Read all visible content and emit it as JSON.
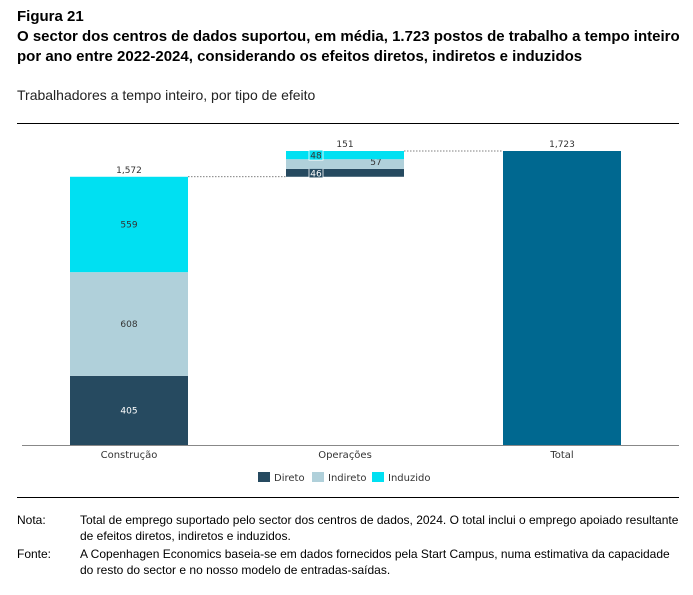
{
  "figure_label": "Figura 21",
  "title": "O sector dos centros de dados suportou, em média, 1.723 postos de trabalho a tempo inteiro por ano entre 2022-2024, considerando os efeitos diretos, indiretos e induzidos",
  "subtitle": "Trabalhadores a tempo inteiro, por tipo de efeito",
  "chart_data": {
    "type": "bar",
    "stacked": true,
    "waterfall": true,
    "categories": [
      "Construção",
      "Operações",
      "Total"
    ],
    "series": [
      {
        "name": "Direto",
        "color": "#264a60",
        "values": [
          405,
          46,
          null
        ]
      },
      {
        "name": "Indireto",
        "color": "#b0d0da",
        "values": [
          608,
          57,
          null
        ]
      },
      {
        "name": "Induzido",
        "color": "#00e0f2",
        "values": [
          559,
          48,
          null
        ]
      }
    ],
    "total": {
      "value": 1723,
      "color": "#006890"
    },
    "bar_totals": [
      "1,572",
      "151",
      "1,723"
    ],
    "segment_labels": [
      [
        "405",
        "608",
        "559"
      ],
      [
        "46",
        "57",
        "48"
      ]
    ],
    "ylim": [
      0,
      1723
    ],
    "legend_position": "bottom",
    "grid": false,
    "xlabel": "",
    "ylabel": ""
  },
  "notes": {
    "nota_key": "Nota:",
    "nota_text": "Total de emprego suportado pelo sector dos centros de dados, 2024. O total inclui o emprego apoiado resultante de efeitos diretos, indiretos e induzidos.",
    "fonte_key": "Fonte:",
    "fonte_text": "A Copenhagen Economics baseia-se em dados fornecidos pela Start Campus, numa estimativa da capacidade do resto do sector e no nosso modelo de entradas-saídas."
  }
}
